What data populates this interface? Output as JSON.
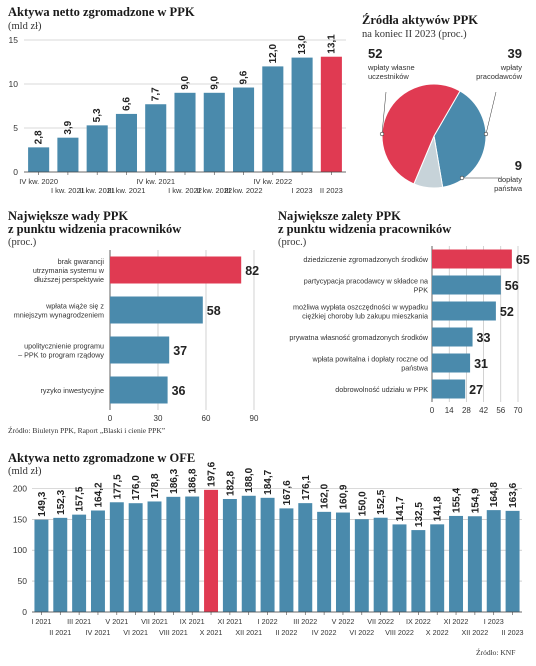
{
  "colors": {
    "bar": "#4a8aac",
    "highlight": "#e03a52",
    "grid": "#b5b5b5",
    "axis": "#444",
    "pie_gray": "#c7d3d9"
  },
  "chart_data": [
    {
      "id": "ppk_assets",
      "type": "bar",
      "title": "Aktywa netto zgromadzone w PPK",
      "unit": "(mld zł)",
      "categories": [
        "IV kw. 2020",
        "I kw. 2021",
        "II kw. 2021",
        "III kw. 2021",
        "IV kw. 2021",
        "I kw. 2022",
        "II kw. 2022",
        "III kw. 2022",
        "IV kw. 2022",
        "I 2023",
        "II 2023"
      ],
      "values": [
        2.8,
        3.9,
        5.3,
        6.6,
        7.7,
        9.0,
        9.0,
        9.6,
        12.0,
        13.0,
        13.1
      ],
      "value_labels": [
        "2,8",
        "3,9",
        "5,3",
        "6,6",
        "7,7",
        "9,0",
        "9,0",
        "9,6",
        "12,0",
        "13,0",
        "13,1"
      ],
      "highlight_index": 10,
      "ylim": [
        0,
        15
      ],
      "yticks": [
        0,
        5,
        10,
        15
      ],
      "grid": true
    },
    {
      "id": "ppk_sources",
      "type": "pie",
      "title": "Źródła aktywów PPK",
      "subtitle": "na koniec II 2023 (proc.)",
      "slices": [
        {
          "value": 52,
          "label": "wpłaty własne uczestników",
          "color": "#e03a52"
        },
        {
          "value": 39,
          "label": "wpłaty pracodawców",
          "color": "#4a8aac"
        },
        {
          "value": 9,
          "label": "dopłaty państwa",
          "color": "#c7d3d9"
        }
      ]
    },
    {
      "id": "ppk_flaws",
      "type": "bar",
      "orientation": "horizontal",
      "title": "Największe wady PPK",
      "title2": "z punktu widzenia pracowników",
      "unit": "(proc.)",
      "categories": [
        "brak gwarancji utrzymania systemu w dłuższej perspektywie",
        "wpłata wiąże się z mniejszym wynagrodzeniem",
        "upolitycznienie programu – PPK to program rządowy",
        "ryzyko inwestycyjne"
      ],
      "values": [
        82,
        58,
        37,
        36
      ],
      "highlight_index": 0,
      "xlim": [
        0,
        90
      ],
      "xticks": [
        "0",
        "30",
        "60",
        "90"
      ]
    },
    {
      "id": "ppk_advantages",
      "type": "bar",
      "orientation": "horizontal",
      "title": "Największe zalety PPK",
      "title2": "z punktu widzenia pracowników",
      "unit": "(proc.)",
      "categories": [
        "dziedziczenie zgromadzonych środków",
        "partycypacja pracodawcy w składce na PPK",
        "możliwa wypłata oszczędności w wypadku ciężkiej choroby lub zakupu mieszkania",
        "prywatna własność gromadzonych środków",
        "wpłata powitalna i dopłaty roczne od państwa",
        "dobrowolność udziału w PPK"
      ],
      "values": [
        65,
        56,
        52,
        33,
        31,
        27
      ],
      "highlight_index": 0,
      "xlim": [
        0,
        70
      ],
      "xticks": [
        "0",
        "14",
        "28",
        "42",
        "56",
        "70"
      ]
    },
    {
      "id": "ofe_assets",
      "type": "bar",
      "title": "Aktywa netto zgromadzone w OFE",
      "unit": "(mld zł)",
      "categories": [
        "I 2021",
        "II 2021",
        "III 2021",
        "IV 2021",
        "V 2021",
        "VI 2021",
        "VII 2021",
        "VIII 2021",
        "IX 2021",
        "X 2021",
        "XI 2021",
        "XII 2021",
        "I 2022",
        "II 2022",
        "III 2022",
        "IV 2022",
        "V 2022",
        "VI 2022",
        "VII 2022",
        "VIII 2022",
        "IX 2022",
        "X 2022",
        "XI 2022",
        "XII 2022",
        "I 2023",
        "II 2023"
      ],
      "axis_labels": [
        "I 2021",
        "III 2021",
        "V 2021",
        "VII 2021",
        "IX 2021",
        "XI 2021",
        "I 2022",
        "III 2022",
        "V 2022",
        "VII 2022",
        "IX 2022",
        "XI 2022",
        "I 2023",
        "II 2023",
        "IV 2021",
        "VI 2021",
        "VIII 2021",
        "X 2021",
        "XII 2021",
        "II 2022",
        "IV 2022",
        "VI 2022",
        "VIII 2022",
        "X 2022",
        "XII 2022"
      ],
      "values": [
        149.3,
        152.3,
        157.5,
        164.2,
        177.5,
        176.0,
        178.8,
        186.3,
        186.8,
        197.6,
        182.8,
        188.0,
        184.7,
        167.6,
        176.1,
        162.0,
        160.9,
        150.0,
        152.5,
        141.7,
        132.5,
        141.8,
        155.4,
        154.9,
        164.8,
        163.6
      ],
      "value_labels": [
        "149,3",
        "152,3",
        "157,5",
        "164,2",
        "177,5",
        "176,0",
        "178,8",
        "186,3",
        "186,8",
        "197,6",
        "182,8",
        "188,0",
        "184,7",
        "167,6",
        "176,1",
        "162,0",
        "160,9",
        "150,0",
        "152,5",
        "141,7",
        "132,5",
        "141,8",
        "155,4",
        "154,9",
        "164,8",
        "163,6"
      ],
      "highlight_index": 9,
      "ylim": [
        0,
        200
      ],
      "yticks": [
        0,
        50,
        100,
        150,
        200
      ],
      "grid": true
    }
  ],
  "notes": {
    "source_middle": "Źródło: Biuletyn PPK, Raport „Blaski i cienie PPK”",
    "source_bottom": "Źródło: KNF"
  }
}
